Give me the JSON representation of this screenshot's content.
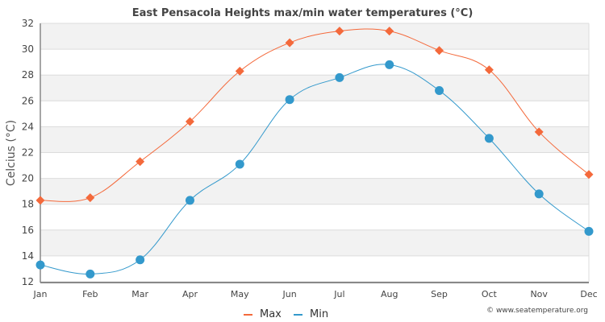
{
  "chart_data": {
    "type": "line",
    "title": "East Pensacola Heights max/min water temperatures (°C)",
    "xlabel": "",
    "ylabel": "Celcius (°C)",
    "categories": [
      "Jan",
      "Feb",
      "Mar",
      "Apr",
      "May",
      "Jun",
      "Jul",
      "Aug",
      "Sep",
      "Oct",
      "Nov",
      "Dec"
    ],
    "ylim": [
      12,
      32
    ],
    "yticks": [
      12,
      14,
      16,
      18,
      20,
      22,
      24,
      26,
      28,
      30,
      32
    ],
    "grid": true,
    "legend_position": "bottom-center",
    "series": [
      {
        "name": "Max",
        "color": "#f4693b",
        "marker": "diamond",
        "values": [
          18.3,
          18.5,
          21.3,
          24.4,
          28.3,
          30.5,
          31.4,
          31.4,
          29.9,
          28.4,
          23.6,
          20.3
        ]
      },
      {
        "name": "Min",
        "color": "#3399cc",
        "marker": "circle",
        "values": [
          13.3,
          12.6,
          13.7,
          18.3,
          21.1,
          26.1,
          27.8,
          28.8,
          26.8,
          23.1,
          18.8,
          15.9
        ]
      }
    ],
    "credit": "© www.seatemperature.org"
  }
}
